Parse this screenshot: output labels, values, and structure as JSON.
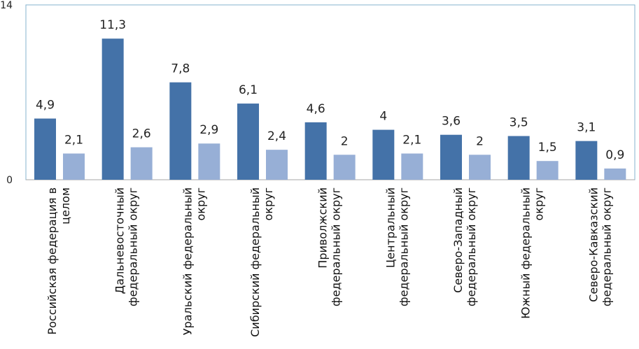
{
  "chart_data": {
    "type": "bar",
    "title": "",
    "xlabel": "",
    "ylabel": "",
    "ylim": [
      0,
      14
    ],
    "yticks": [
      "0",
      "14"
    ],
    "grid": false,
    "legend": "none",
    "categories": [
      [
        "Российская федерация в",
        "целом"
      ],
      [
        "Дальневосточный",
        "федеральный округ"
      ],
      [
        "Уральский федеральный",
        "округ"
      ],
      [
        "Сибирский федеральный",
        "округ"
      ],
      [
        "Приволжский",
        "федеральный округ"
      ],
      [
        "Центральный",
        "федеральный округ"
      ],
      [
        "Северо-Западный",
        "федеральный округ"
      ],
      [
        "Южный федеральный",
        "округ"
      ],
      [
        "Северо-Кавказский",
        "федеральный округ"
      ]
    ],
    "series": [
      {
        "values": [
          4.9,
          11.3,
          7.8,
          6.1,
          4.6,
          4,
          3.6,
          3.5,
          3.1
        ],
        "labels": [
          "4,9",
          "11,3",
          "7,8",
          "6,1",
          "4,6",
          "4",
          "3,6",
          "3,5",
          "3,1"
        ],
        "color": "#4472a8"
      },
      {
        "values": [
          2.1,
          2.6,
          2.9,
          2.4,
          2,
          2.1,
          2,
          1.5,
          0.9
        ],
        "labels": [
          "2,1",
          "2,6",
          "2,9",
          "2,4",
          "2",
          "2,1",
          "2",
          "1,5",
          "0,9"
        ],
        "color": "#97afd6"
      }
    ],
    "colors": {
      "border": "#86b3cf",
      "axis": "#a6a6a6"
    }
  }
}
